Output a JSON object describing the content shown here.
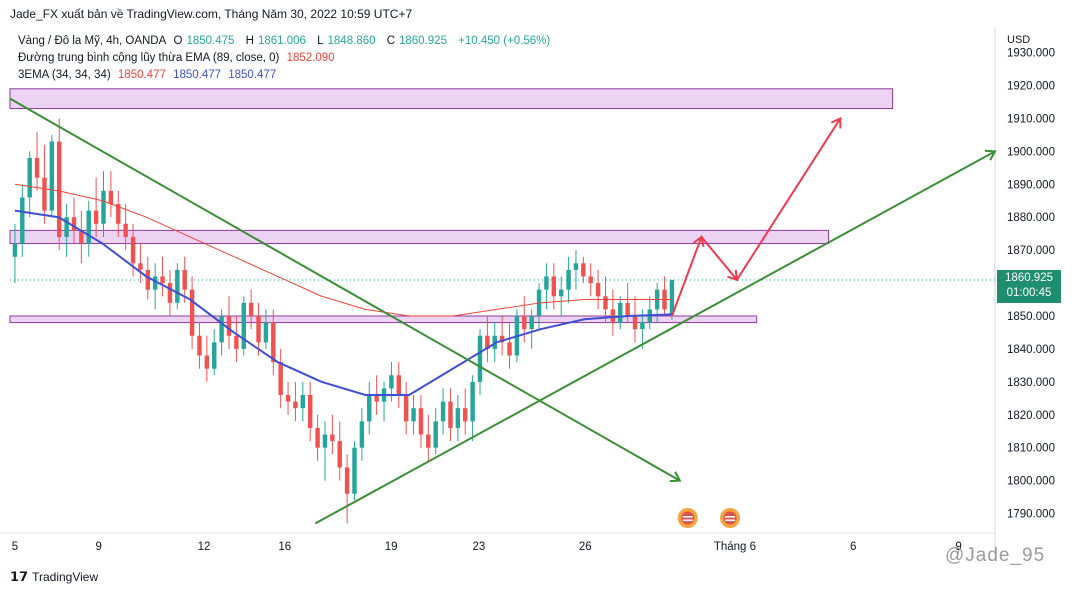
{
  "header": {
    "publish_line": "Jade_FX xuất bản về TradingView.com, Tháng Năm 30, 2022 10:59 UTC+7"
  },
  "legend": {
    "symbol_line": {
      "name": "Vàng / Đô la Mỹ, 4h, OANDA",
      "open_label": "O",
      "open": "1850.475",
      "high_label": "H",
      "high": "1861.006",
      "low_label": "L",
      "low": "1848.860",
      "close_label": "C",
      "close": "1860.925",
      "change": "+10.450 (+0.56%)"
    },
    "ema_line": {
      "name": "Đường trung bình cộng lũy thừa EMA (89, close, 0)",
      "value": "1852.090"
    },
    "ema3_line": {
      "name": "3EMA (34, 34, 34)",
      "v1": "1850.477",
      "v2": "1850.477",
      "v3": "1850.477"
    }
  },
  "axis": {
    "currency": "USD",
    "last_price": "1860.925",
    "countdown": "01:00:45"
  },
  "footer": {
    "brand": "TradingView",
    "watermark": "@Jade_95"
  },
  "colors": {
    "bull": "#26a69a",
    "bear": "#ef5350",
    "ema89": "#f44336",
    "ema34": "#3f4fd6",
    "trendline": "#3a8f35",
    "projection": "#ef3a4f",
    "zone_fill": "#e9c8f0",
    "zone_stroke": "#8e3aa0",
    "last_label": "#1e8e6e"
  },
  "chart_data": {
    "type": "candlestick",
    "title": "",
    "y_ticks": [
      "1790.000",
      "1800.000",
      "1810.000",
      "1820.000",
      "1830.000",
      "1840.000",
      "1850.000",
      "1860.000",
      "1870.000",
      "1880.000",
      "1890.000",
      "1900.000",
      "1910.000",
      "1920.000",
      "1930.000"
    ],
    "ylim": [
      1785,
      1932
    ],
    "x_ticks": [
      "5",
      "9",
      "12",
      "16",
      "19",
      "23",
      "26",
      "Tháng 6",
      "6",
      "9"
    ],
    "candles_ohlc": [
      [
        1868,
        1878,
        1860,
        1872
      ],
      [
        1872,
        1890,
        1868,
        1886
      ],
      [
        1886,
        1900,
        1880,
        1898
      ],
      [
        1898,
        1906,
        1888,
        1892
      ],
      [
        1892,
        1902,
        1878,
        1882
      ],
      [
        1882,
        1905,
        1880,
        1903
      ],
      [
        1903,
        1910,
        1870,
        1874
      ],
      [
        1874,
        1884,
        1868,
        1880
      ],
      [
        1880,
        1886,
        1872,
        1876
      ],
      [
        1876,
        1882,
        1866,
        1872
      ],
      [
        1872,
        1885,
        1868,
        1882
      ],
      [
        1882,
        1892,
        1874,
        1878
      ],
      [
        1878,
        1894,
        1874,
        1888
      ],
      [
        1888,
        1894,
        1880,
        1884
      ],
      [
        1884,
        1888,
        1874,
        1878
      ],
      [
        1878,
        1884,
        1870,
        1874
      ],
      [
        1874,
        1878,
        1862,
        1866
      ],
      [
        1866,
        1872,
        1860,
        1864
      ],
      [
        1864,
        1868,
        1855,
        1858
      ],
      [
        1858,
        1866,
        1852,
        1862
      ],
      [
        1862,
        1868,
        1856,
        1860
      ],
      [
        1860,
        1864,
        1850,
        1854
      ],
      [
        1854,
        1866,
        1852,
        1864
      ],
      [
        1864,
        1868,
        1854,
        1858
      ],
      [
        1858,
        1862,
        1840,
        1844
      ],
      [
        1844,
        1848,
        1834,
        1838
      ],
      [
        1838,
        1844,
        1830,
        1834
      ],
      [
        1834,
        1846,
        1832,
        1842
      ],
      [
        1842,
        1852,
        1838,
        1850
      ],
      [
        1850,
        1856,
        1840,
        1844
      ],
      [
        1844,
        1850,
        1836,
        1840
      ],
      [
        1840,
        1856,
        1838,
        1854
      ],
      [
        1854,
        1858,
        1846,
        1850
      ],
      [
        1850,
        1854,
        1838,
        1842
      ],
      [
        1842,
        1852,
        1840,
        1848
      ],
      [
        1848,
        1852,
        1832,
        1836
      ],
      [
        1836,
        1840,
        1822,
        1826
      ],
      [
        1826,
        1830,
        1820,
        1824
      ],
      [
        1824,
        1830,
        1818,
        1822
      ],
      [
        1822,
        1830,
        1818,
        1826
      ],
      [
        1826,
        1830,
        1812,
        1816
      ],
      [
        1816,
        1820,
        1806,
        1810
      ],
      [
        1810,
        1818,
        1800,
        1814
      ],
      [
        1814,
        1820,
        1808,
        1812
      ],
      [
        1812,
        1818,
        1800,
        1804
      ],
      [
        1804,
        1808,
        1787,
        1796
      ],
      [
        1796,
        1812,
        1794,
        1810
      ],
      [
        1810,
        1822,
        1806,
        1818
      ],
      [
        1818,
        1830,
        1814,
        1826
      ],
      [
        1826,
        1832,
        1820,
        1824
      ],
      [
        1824,
        1830,
        1818,
        1828
      ],
      [
        1828,
        1836,
        1824,
        1832
      ],
      [
        1832,
        1836,
        1822,
        1826
      ],
      [
        1826,
        1830,
        1814,
        1818
      ],
      [
        1818,
        1826,
        1814,
        1822
      ],
      [
        1822,
        1826,
        1810,
        1814
      ],
      [
        1814,
        1820,
        1806,
        1810
      ],
      [
        1810,
        1822,
        1808,
        1818
      ],
      [
        1818,
        1828,
        1814,
        1824
      ],
      [
        1824,
        1828,
        1812,
        1816
      ],
      [
        1816,
        1826,
        1812,
        1822
      ],
      [
        1822,
        1828,
        1814,
        1818
      ],
      [
        1818,
        1832,
        1812,
        1830
      ],
      [
        1830,
        1846,
        1826,
        1844
      ],
      [
        1844,
        1850,
        1836,
        1840
      ],
      [
        1840,
        1848,
        1836,
        1844
      ],
      [
        1844,
        1850,
        1838,
        1842
      ],
      [
        1842,
        1848,
        1834,
        1838
      ],
      [
        1838,
        1852,
        1836,
        1850
      ],
      [
        1850,
        1856,
        1842,
        1846
      ],
      [
        1846,
        1852,
        1840,
        1850
      ],
      [
        1850,
        1860,
        1846,
        1858
      ],
      [
        1858,
        1866,
        1852,
        1862
      ],
      [
        1862,
        1866,
        1852,
        1856
      ],
      [
        1856,
        1862,
        1850,
        1858
      ],
      [
        1858,
        1868,
        1854,
        1864
      ],
      [
        1864,
        1870,
        1858,
        1866
      ],
      [
        1866,
        1868,
        1860,
        1862
      ],
      [
        1862,
        1866,
        1856,
        1860
      ],
      [
        1860,
        1864,
        1852,
        1856
      ],
      [
        1856,
        1862,
        1848,
        1852
      ],
      [
        1852,
        1858,
        1844,
        1848
      ],
      [
        1848,
        1856,
        1846,
        1854
      ],
      [
        1854,
        1860,
        1848,
        1850
      ],
      [
        1850,
        1856,
        1842,
        1846
      ],
      [
        1846,
        1852,
        1840,
        1848
      ],
      [
        1848,
        1856,
        1846,
        1852
      ],
      [
        1852,
        1860,
        1848,
        1858
      ],
      [
        1858,
        1862,
        1850,
        1852
      ],
      [
        1850.475,
        1861.006,
        1848.86,
        1860.925
      ]
    ],
    "ema89_approx": [
      1890,
      1888,
      1885,
      1880,
      1874,
      1868,
      1862,
      1856,
      1852,
      1850,
      1850,
      1852,
      1854,
      1855,
      1855,
      1855
    ],
    "ema34_approx": [
      1882,
      1880,
      1872,
      1862,
      1855,
      1845,
      1836,
      1830,
      1826,
      1826,
      1834,
      1842,
      1846,
      1849,
      1850,
      1850.477
    ],
    "horizontal_zones": [
      {
        "low": 1913,
        "high": 1919
      },
      {
        "low": 1872,
        "high": 1876
      },
      {
        "low": 1848,
        "high": 1850
      }
    ],
    "trendlines": [
      {
        "from": [
          0,
          1916
        ],
        "to": [
          0.68,
          1800
        ]
      },
      {
        "from": [
          0.31,
          1787
        ],
        "to": [
          1.0,
          1900
        ]
      }
    ],
    "projection_path": [
      1850,
      1874,
      1861,
      1910
    ],
    "last_price": 1860.925
  }
}
